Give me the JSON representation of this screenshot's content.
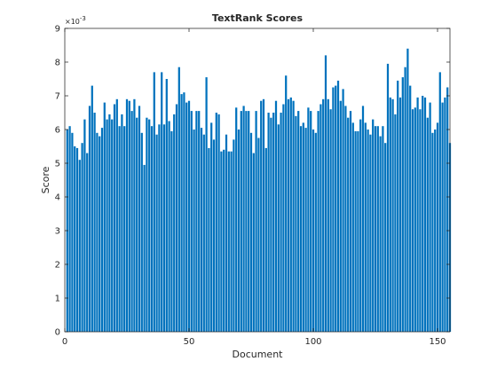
{
  "colors": {
    "bar": "#0072BD",
    "axis": "#262626",
    "background": "#ffffff"
  },
  "chart_data": {
    "type": "bar",
    "title": "TextRank Scores",
    "xlabel": "Document",
    "ylabel": "Score",
    "y_exponent_label": "×10",
    "y_exponent_power": "-3",
    "xlim": [
      0,
      155
    ],
    "ylim": [
      0,
      9
    ],
    "y_scale_factor": 0.001,
    "x_ticks": [
      0,
      50,
      100,
      150
    ],
    "x_tick_labels": [
      "0",
      "50",
      "100",
      "150"
    ],
    "y_ticks": [
      0,
      1,
      2,
      3,
      4,
      5,
      6,
      7,
      8,
      9
    ],
    "y_tick_labels": [
      "0",
      "1",
      "2",
      "3",
      "4",
      "5",
      "6",
      "7",
      "8",
      "9"
    ],
    "grid": false,
    "x": [
      1,
      2,
      3,
      4,
      5,
      6,
      7,
      8,
      9,
      10,
      11,
      12,
      13,
      14,
      15,
      16,
      17,
      18,
      19,
      20,
      21,
      22,
      23,
      24,
      25,
      26,
      27,
      28,
      29,
      30,
      31,
      32,
      33,
      34,
      35,
      36,
      37,
      38,
      39,
      40,
      41,
      42,
      43,
      44,
      45,
      46,
      47,
      48,
      49,
      50,
      51,
      52,
      53,
      54,
      55,
      56,
      57,
      58,
      59,
      60,
      61,
      62,
      63,
      64,
      65,
      66,
      67,
      68,
      69,
      70,
      71,
      72,
      73,
      74,
      75,
      76,
      77,
      78,
      79,
      80,
      81,
      82,
      83,
      84,
      85,
      86,
      87,
      88,
      89,
      90,
      91,
      92,
      93,
      94,
      95,
      96,
      97,
      98,
      99,
      100,
      101,
      102,
      103,
      104,
      105,
      106,
      107,
      108,
      109,
      110,
      111,
      112,
      113,
      114,
      115,
      116,
      117,
      118,
      119,
      120,
      121,
      122,
      123,
      124,
      125,
      126,
      127,
      128,
      129,
      130,
      131,
      132,
      133,
      134,
      135,
      136,
      137,
      138,
      139,
      140,
      141,
      142,
      143,
      144,
      145,
      146,
      147,
      148,
      149,
      150,
      151,
      152,
      153,
      154,
      155
    ],
    "values": [
      6.0,
      6.1,
      5.9,
      5.5,
      5.45,
      5.1,
      5.6,
      6.3,
      5.3,
      6.7,
      7.3,
      6.5,
      5.9,
      5.8,
      6.05,
      6.8,
      6.3,
      6.45,
      6.3,
      6.75,
      6.9,
      6.1,
      6.45,
      6.1,
      6.9,
      6.85,
      6.55,
      6.9,
      6.35,
      6.7,
      5.9,
      4.95,
      6.35,
      6.3,
      6.1,
      7.7,
      5.85,
      6.15,
      7.7,
      6.15,
      7.5,
      6.25,
      5.95,
      6.45,
      6.75,
      7.85,
      7.05,
      7.1,
      6.8,
      6.85,
      6.55,
      6.0,
      6.55,
      6.55,
      6.05,
      5.85,
      7.55,
      5.45,
      6.2,
      5.7,
      6.5,
      6.45,
      5.35,
      5.4,
      5.85,
      5.35,
      5.35,
      5.7,
      6.65,
      6.0,
      6.55,
      6.7,
      6.55,
      6.55,
      5.9,
      5.3,
      6.55,
      5.75,
      6.85,
      6.9,
      5.45,
      6.5,
      6.35,
      6.5,
      6.85,
      6.15,
      6.5,
      6.75,
      7.6,
      6.9,
      6.95,
      6.85,
      6.4,
      6.55,
      6.1,
      6.2,
      6.05,
      6.65,
      6.55,
      6.0,
      5.9,
      6.55,
      6.75,
      6.9,
      8.2,
      6.9,
      6.6,
      7.25,
      7.3,
      7.45,
      6.85,
      7.2,
      6.7,
      6.35,
      6.55,
      6.2,
      5.95,
      5.95,
      6.3,
      6.7,
      6.2,
      6.0,
      5.85,
      6.3,
      6.1,
      6.1,
      5.8,
      6.1,
      5.6,
      7.95,
      6.95,
      6.9,
      6.45,
      7.45,
      6.95,
      7.55,
      7.85,
      8.4,
      7.3,
      6.6,
      6.65,
      6.95,
      6.6,
      7.0,
      6.95,
      6.35,
      6.8,
      5.9,
      6.0,
      6.2,
      7.7,
      6.8,
      6.95,
      7.25,
      5.6
    ]
  }
}
